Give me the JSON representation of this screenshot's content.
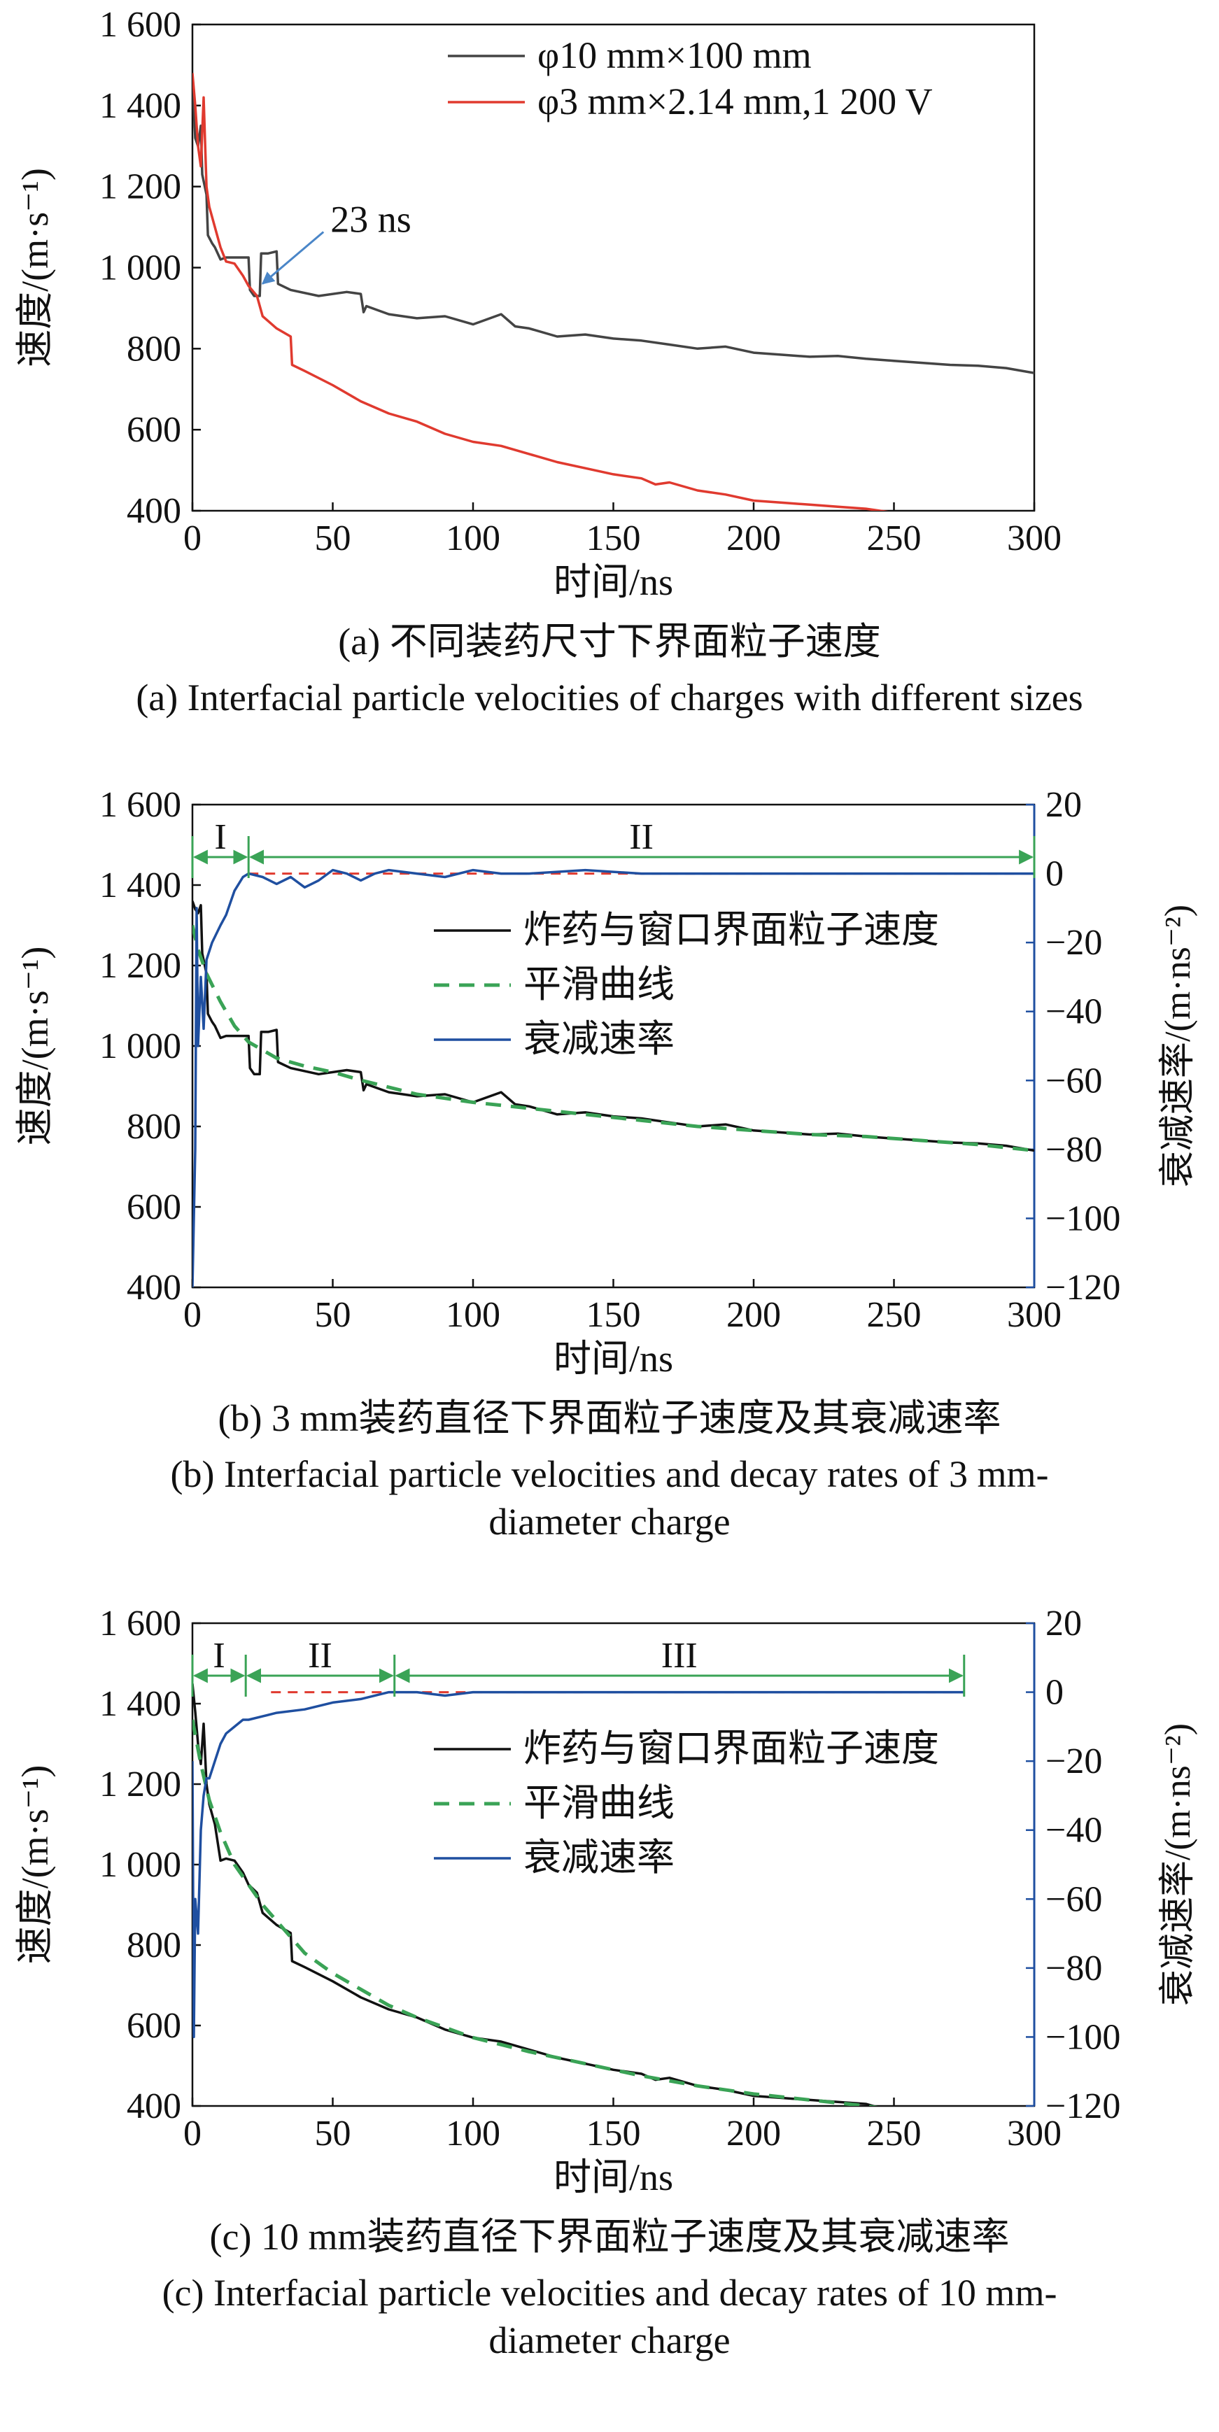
{
  "chart_data": [
    {
      "type": "line",
      "panel": "a",
      "caption_cn": "(a) 不同装药尺寸下界面粒子速度",
      "caption_en": "(a) Interfacial particle velocities of charges with different sizes",
      "xlabel": "时间/ns",
      "ylabel": "速度/(m·s⁻¹)",
      "xlim": [
        0,
        300
      ],
      "ylim": [
        400,
        1600
      ],
      "xticks": [
        0,
        50,
        100,
        150,
        200,
        250,
        300
      ],
      "yticks": [
        400,
        600,
        800,
        1000,
        1200,
        1400,
        1600
      ],
      "ytick_labels": [
        "400",
        "600",
        "800",
        "1 000",
        "1 200",
        "1 400",
        "1 600"
      ],
      "grid": false,
      "legend_position": "top-right",
      "annotation": {
        "text": "23 ns",
        "x": 23,
        "y": 950
      },
      "series": [
        {
          "name": "φ10 mm×100 mm",
          "color": "#444444",
          "x": [
            0,
            1,
            2,
            3,
            3.5,
            5,
            5.5,
            7,
            8,
            10,
            12,
            15,
            20,
            20.5,
            22,
            24,
            24.5,
            27,
            30,
            30.5,
            35,
            45,
            55,
            60,
            61,
            62,
            70,
            80,
            90,
            100,
            110,
            115,
            120,
            130,
            140,
            150,
            160,
            170,
            180,
            190,
            200,
            210,
            220,
            230,
            240,
            250,
            260,
            270,
            280,
            290,
            300
          ],
          "y": [
            1470,
            1320,
            1300,
            1350,
            1230,
            1180,
            1080,
            1060,
            1050,
            1020,
            1025,
            1025,
            1025,
            945,
            930,
            930,
            1035,
            1035,
            1040,
            960,
            945,
            930,
            940,
            935,
            890,
            905,
            885,
            875,
            880,
            860,
            885,
            855,
            850,
            830,
            835,
            825,
            820,
            810,
            800,
            805,
            790,
            785,
            780,
            782,
            775,
            770,
            765,
            760,
            758,
            752,
            740
          ]
        },
        {
          "name": "φ3 mm×2.14 mm,1 200 V",
          "color": "#e03a2f",
          "x": [
            0,
            1,
            2,
            3,
            4,
            5,
            6,
            8,
            10,
            12,
            15,
            18,
            20,
            23,
            25,
            30,
            35,
            35.5,
            40,
            50,
            60,
            70,
            80,
            90,
            100,
            110,
            120,
            130,
            140,
            150,
            160,
            165,
            170,
            180,
            190,
            200,
            210,
            220,
            230,
            240,
            250
          ],
          "y": [
            1480,
            1400,
            1300,
            1250,
            1420,
            1200,
            1150,
            1100,
            1050,
            1015,
            1010,
            980,
            955,
            930,
            880,
            850,
            830,
            760,
            745,
            710,
            670,
            640,
            620,
            590,
            570,
            560,
            540,
            520,
            505,
            490,
            480,
            465,
            470,
            450,
            440,
            425,
            420,
            415,
            410,
            405,
            395
          ]
        }
      ]
    },
    {
      "type": "line",
      "panel": "b",
      "caption_cn": "(b) 3 mm装药直径下界面粒子速度及其衰减速率",
      "caption_en_lines": [
        "(b) Interfacial particle velocities and decay rates of 3 mm-",
        "diameter charge"
      ],
      "xlabel": "时间/ns",
      "ylabel": "速度/(m·s⁻¹)",
      "y2label": "衰减速率/(m·ns⁻²)",
      "xlim": [
        0,
        300
      ],
      "ylim": [
        400,
        1600
      ],
      "y2lim": [
        -120,
        20
      ],
      "xticks": [
        0,
        50,
        100,
        150,
        200,
        250,
        300
      ],
      "yticks": [
        400,
        600,
        800,
        1000,
        1200,
        1400,
        1600
      ],
      "ytick_labels": [
        "400",
        "600",
        "800",
        "1 000",
        "1 200",
        "1 400",
        "1 600"
      ],
      "y2ticks": [
        -120,
        -100,
        -80,
        -60,
        -40,
        -20,
        0,
        20
      ],
      "y2tick_labels": [
        "−120",
        "−100",
        "−80",
        "−60",
        "−40",
        "−20",
        "0",
        "20"
      ],
      "grid": false,
      "legend_position": "top-right",
      "stages": [
        {
          "label": "I",
          "x0": 0,
          "x1": 20
        },
        {
          "label": "II",
          "x0": 20,
          "x1": 300
        }
      ],
      "reference_line": {
        "y2": 0,
        "x0": 20,
        "x1": 300,
        "color": "#e03a2f"
      },
      "series": [
        {
          "name": "炸药与窗口界面粒子速度",
          "color": "#111111",
          "axis": "left",
          "x": [
            0,
            1,
            2,
            3,
            3.5,
            5,
            5.5,
            7,
            8,
            10,
            12,
            15,
            20,
            20.5,
            22,
            24,
            24.5,
            27,
            30,
            30.5,
            35,
            45,
            55,
            60,
            61,
            62,
            70,
            80,
            90,
            100,
            110,
            115,
            120,
            130,
            140,
            150,
            160,
            170,
            180,
            190,
            200,
            210,
            220,
            230,
            240,
            250,
            260,
            270,
            280,
            290,
            300
          ],
          "y": [
            1360,
            1340,
            1330,
            1350,
            1230,
            1180,
            1080,
            1060,
            1050,
            1020,
            1025,
            1025,
            1025,
            945,
            930,
            930,
            1035,
            1035,
            1040,
            960,
            945,
            930,
            940,
            935,
            890,
            905,
            885,
            875,
            880,
            860,
            885,
            855,
            850,
            830,
            835,
            825,
            820,
            810,
            800,
            805,
            790,
            785,
            780,
            782,
            775,
            770,
            765,
            760,
            758,
            752,
            740
          ]
        },
        {
          "name": "平滑曲线",
          "color": "#3aa356",
          "dash": "dashed",
          "axis": "left",
          "x": [
            0,
            2,
            5,
            10,
            15,
            20,
            30,
            40,
            50,
            60,
            80,
            100,
            120,
            140,
            160,
            180,
            200,
            220,
            240,
            260,
            280,
            300
          ],
          "y": [
            1300,
            1240,
            1180,
            1110,
            1050,
            1010,
            970,
            950,
            935,
            915,
            880,
            860,
            845,
            830,
            815,
            800,
            790,
            780,
            775,
            765,
            755,
            740
          ]
        },
        {
          "name": "衰减速率",
          "color": "#1f4fa0",
          "axis": "right",
          "x": [
            0,
            1,
            1.5,
            2,
            3,
            4,
            5,
            7,
            10,
            12,
            15,
            18,
            20,
            25,
            30,
            35,
            40,
            45,
            50,
            55,
            60,
            65,
            70,
            80,
            90,
            100,
            110,
            120,
            140,
            160,
            180,
            200,
            220,
            240,
            260,
            280,
            300
          ],
          "y2": [
            -120,
            -80,
            -10,
            -50,
            -30,
            -45,
            -25,
            -20,
            -15,
            -12,
            -5,
            -1,
            0,
            -1,
            -3,
            -1,
            -4,
            -2,
            1,
            0,
            -2,
            0,
            1,
            0,
            -1,
            1,
            0,
            0,
            1,
            0,
            0,
            0,
            0,
            0,
            0,
            0,
            0
          ]
        }
      ]
    },
    {
      "type": "line",
      "panel": "c",
      "caption_cn": "(c) 10 mm装药直径下界面粒子速度及其衰减速率",
      "caption_en_lines": [
        "(c) Interfacial particle velocities and decay rates of 10 mm-",
        "diameter charge"
      ],
      "xlabel": "时间/ns",
      "ylabel": "速度/(m·s⁻¹)",
      "y2label": "衰减速率/(m·ns⁻²)",
      "xlim": [
        0,
        300
      ],
      "ylim": [
        400,
        1600
      ],
      "y2lim": [
        -120,
        20
      ],
      "xticks": [
        0,
        50,
        100,
        150,
        200,
        250,
        300
      ],
      "yticks": [
        400,
        600,
        800,
        1000,
        1200,
        1400,
        1600
      ],
      "ytick_labels": [
        "400",
        "600",
        "800",
        "1 000",
        "1 200",
        "1 400",
        "1 600"
      ],
      "y2ticks": [
        -120,
        -100,
        -80,
        -60,
        -40,
        -20,
        0,
        20
      ],
      "y2tick_labels": [
        "−120",
        "−100",
        "−80",
        "−60",
        "−40",
        "−20",
        "0",
        "20"
      ],
      "grid": false,
      "legend_position": "top-right",
      "stages": [
        {
          "label": "I",
          "x0": 0,
          "x1": 19
        },
        {
          "label": "II",
          "x0": 19,
          "x1": 72
        },
        {
          "label": "III",
          "x0": 72,
          "x1": 275
        }
      ],
      "reference_line": {
        "y2": 0,
        "x0": 28,
        "x1": 275,
        "color": "#e03a2f"
      },
      "series": [
        {
          "name": "炸药与窗口界面粒子速度",
          "color": "#111111",
          "axis": "left",
          "x": [
            0,
            1,
            2,
            3,
            4,
            5,
            6,
            8,
            10,
            12,
            15,
            18,
            20,
            23,
            25,
            30,
            35,
            35.5,
            40,
            50,
            60,
            70,
            80,
            90,
            100,
            110,
            120,
            130,
            140,
            150,
            160,
            165,
            170,
            180,
            190,
            200,
            210,
            220,
            230,
            240,
            245
          ],
          "y": [
            1450,
            1380,
            1300,
            1250,
            1350,
            1200,
            1150,
            1100,
            1010,
            1015,
            1010,
            980,
            950,
            930,
            880,
            850,
            830,
            760,
            745,
            710,
            670,
            640,
            620,
            590,
            570,
            560,
            540,
            520,
            505,
            490,
            480,
            465,
            470,
            450,
            440,
            425,
            420,
            415,
            410,
            405,
            395
          ]
        },
        {
          "name": "平滑曲线",
          "color": "#3aa356",
          "dash": "dashed",
          "axis": "left",
          "x": [
            0,
            3,
            6,
            10,
            15,
            20,
            25,
            30,
            40,
            50,
            60,
            70,
            80,
            100,
            120,
            140,
            160,
            180,
            200,
            220,
            240,
            245
          ],
          "y": [
            1360,
            1250,
            1160,
            1080,
            1000,
            950,
            900,
            860,
            780,
            730,
            690,
            650,
            620,
            570,
            535,
            505,
            475,
            450,
            430,
            415,
            400,
            395
          ]
        },
        {
          "name": "衰减速率",
          "color": "#1f4fa0",
          "axis": "right",
          "x": [
            0,
            0.5,
            1,
            2,
            3,
            4,
            5,
            6,
            8,
            10,
            12,
            15,
            18,
            20,
            25,
            30,
            40,
            50,
            60,
            70,
            80,
            90,
            100,
            120,
            140,
            160,
            180,
            200,
            220,
            240,
            260,
            275
          ],
          "y2": [
            -20,
            -100,
            -60,
            -70,
            -40,
            -30,
            -25,
            -25,
            -20,
            -15,
            -12,
            -10,
            -8,
            -8,
            -7,
            -6,
            -5,
            -3,
            -2,
            0,
            0,
            -1,
            0,
            0,
            0,
            0,
            0,
            0,
            0,
            0,
            0,
            0
          ]
        }
      ]
    }
  ]
}
